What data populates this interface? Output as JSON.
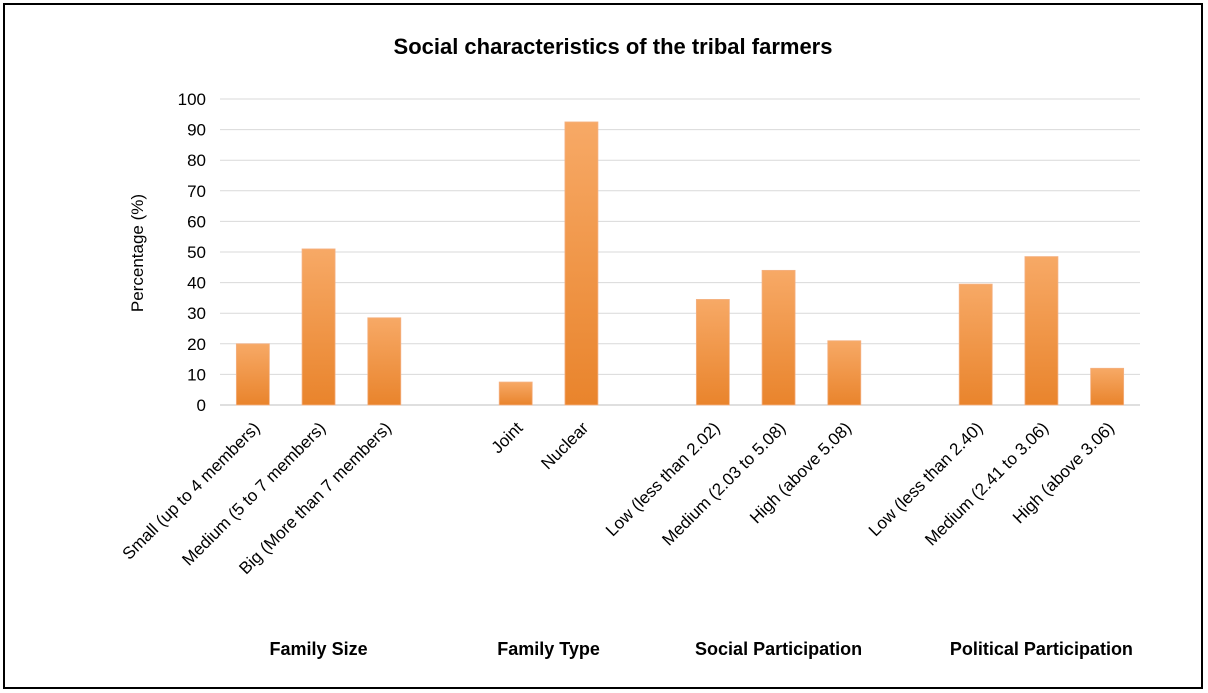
{
  "chart_data": {
    "type": "bar",
    "title": "Social characteristics of the tribal farmers",
    "xlabel": "",
    "ylabel": "Percentage (%)",
    "ylim": [
      0,
      100
    ],
    "yticks": [
      0,
      10,
      20,
      30,
      40,
      50,
      60,
      70,
      80,
      90,
      100
    ],
    "grid": true,
    "legend": "none",
    "bar_color": "#ED8C36",
    "bar_color_light": "#F7A966",
    "groups": [
      {
        "name": "Family Size",
        "categories": [
          "Small (up to 4 members)",
          "Medium (5 to 7 members)",
          "Big (More than 7 members)"
        ],
        "values": [
          20,
          51,
          28.5
        ]
      },
      {
        "name": "Family Type",
        "categories": [
          "Joint",
          "Nuclear"
        ],
        "values": [
          7.5,
          92.5
        ]
      },
      {
        "name": "Social Participation",
        "categories": [
          "Low (less than 2.02)",
          "Medium (2.03 to 5.08)",
          "High (above 5.08)"
        ],
        "values": [
          34.5,
          44,
          21
        ]
      },
      {
        "name": "Political Participation",
        "categories": [
          "Low (less than 2.40)",
          "Medium (2.41 to 3.06)",
          "High (above 3.06)"
        ],
        "values": [
          39.5,
          48.5,
          12
        ]
      }
    ]
  }
}
